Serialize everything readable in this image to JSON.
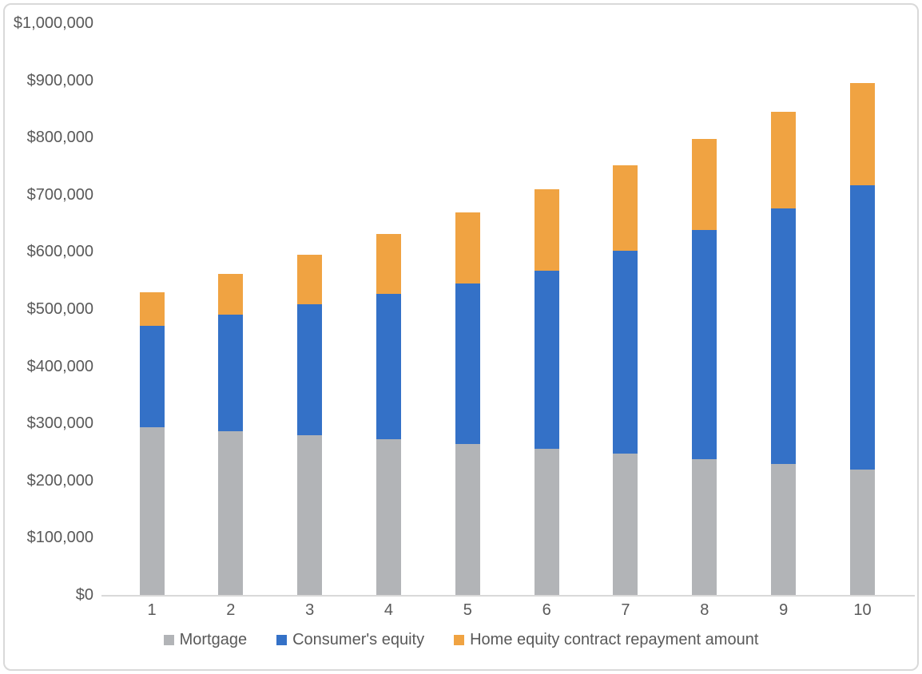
{
  "chart_data": {
    "type": "bar",
    "stacked": true,
    "title": "",
    "categories": [
      "1",
      "2",
      "3",
      "4",
      "5",
      "6",
      "7",
      "8",
      "9",
      "10"
    ],
    "series": [
      {
        "name": "Mortgage",
        "color": "#B2B4B7",
        "values": [
          293000,
          286000,
          279000,
          272000,
          264000,
          256000,
          247000,
          238000,
          229000,
          219000
        ]
      },
      {
        "name": "Consumer's equity",
        "color": "#3471C7",
        "values": [
          177000,
          204000,
          230000,
          255000,
          281000,
          311000,
          355000,
          400000,
          447000,
          497000
        ]
      },
      {
        "name": "Home equity contract repayment amount",
        "color": "#F0A342",
        "values": [
          60000,
          72000,
          86000,
          104000,
          124000,
          142000,
          150000,
          159000,
          169000,
          179000
        ]
      }
    ],
    "stack_totals": [
      530000,
      562000,
      595000,
      631000,
      669000,
      709000,
      752000,
      797000,
      845000,
      895000
    ],
    "xlabel": "",
    "ylabel": "",
    "ylim": [
      0,
      1000000
    ],
    "ytick_interval": 100000,
    "yticks": [
      {
        "value": 0,
        "label": "$0"
      },
      {
        "value": 100000,
        "label": "$100,000"
      },
      {
        "value": 200000,
        "label": "$200,000"
      },
      {
        "value": 300000,
        "label": "$300,000"
      },
      {
        "value": 400000,
        "label": "$400,000"
      },
      {
        "value": 500000,
        "label": "$500,000"
      },
      {
        "value": 600000,
        "label": "$600,000"
      },
      {
        "value": 700000,
        "label": "$700,000"
      },
      {
        "value": 800000,
        "label": "$800,000"
      },
      {
        "value": 900000,
        "label": "$900,000"
      },
      {
        "value": 1000000,
        "label": "$1,000,000"
      }
    ],
    "grid": false,
    "legend_position": "bottom",
    "axis_text_color": "#595959",
    "axis_line_color": "#D9D9D9",
    "frame_border_color": "#D9D9D9"
  }
}
